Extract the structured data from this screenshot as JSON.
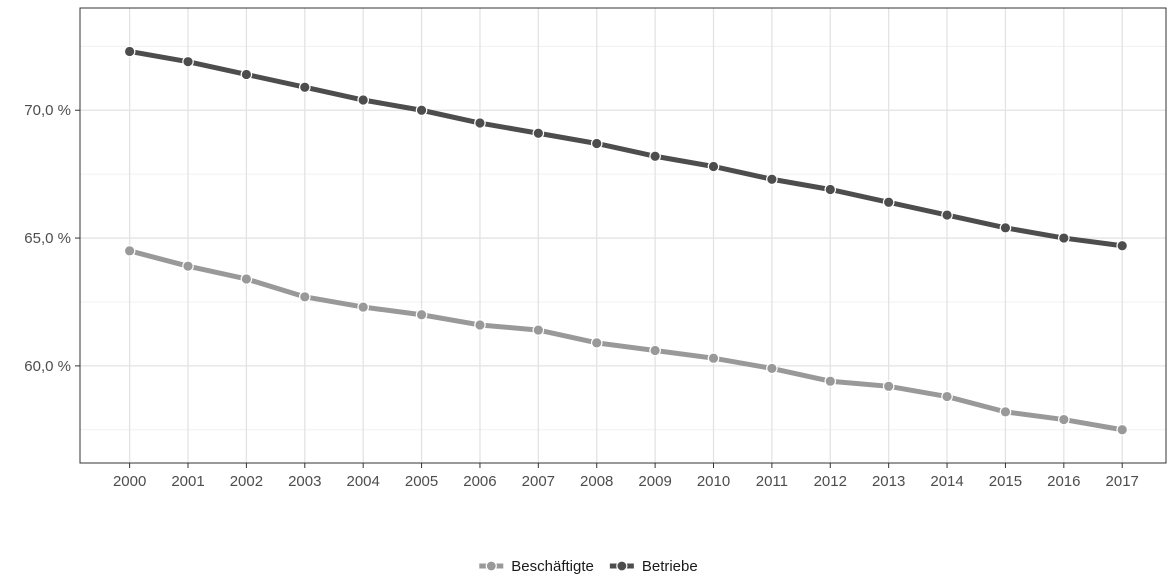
{
  "chart_data": {
    "type": "line",
    "title": "",
    "xlabel": "",
    "ylabel": "",
    "x": [
      2000,
      2001,
      2002,
      2003,
      2004,
      2005,
      2006,
      2007,
      2008,
      2009,
      2010,
      2011,
      2012,
      2013,
      2014,
      2015,
      2016,
      2017
    ],
    "x_tick_labels": [
      "2000",
      "2001",
      "2002",
      "2003",
      "2004",
      "2005",
      "2006",
      "2007",
      "2008",
      "2009",
      "2010",
      "2011",
      "2012",
      "2013",
      "2014",
      "2015",
      "2016",
      "2017"
    ],
    "ylim": [
      56.2,
      74.0
    ],
    "y_ticks": [
      60,
      65,
      70
    ],
    "y_tick_labels": [
      "60,0 %",
      "65,0 %",
      "70,0 %"
    ],
    "grid": true,
    "legend_position": "bottom",
    "series": [
      {
        "name": "Beschäftigte",
        "color": "#999999",
        "values": [
          64.5,
          63.9,
          63.4,
          62.7,
          62.3,
          62.0,
          61.6,
          61.4,
          60.9,
          60.6,
          60.3,
          59.9,
          59.4,
          59.2,
          58.8,
          58.2,
          57.9,
          57.5
        ]
      },
      {
        "name": "Betriebe",
        "color": "#4d4d4d",
        "values": [
          72.3,
          71.9,
          71.4,
          70.9,
          70.4,
          70.0,
          69.5,
          69.1,
          68.7,
          68.2,
          67.8,
          67.3,
          66.9,
          66.4,
          65.9,
          65.4,
          65.0,
          64.7
        ]
      }
    ]
  }
}
